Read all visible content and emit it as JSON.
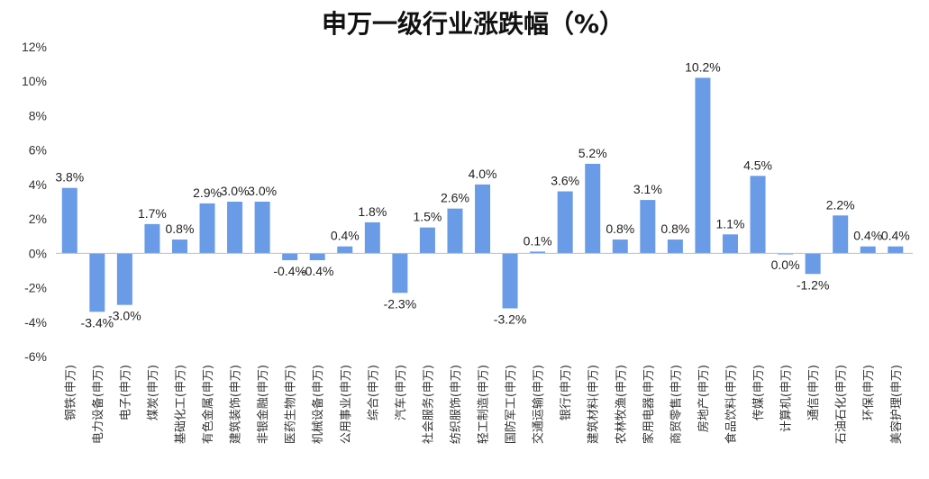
{
  "chart_data": {
    "type": "bar",
    "title": "申万一级行业涨跌幅（%）",
    "xlabel": "",
    "ylabel": "",
    "ylim": [
      -6,
      12
    ],
    "yticks": [
      "12%",
      "10%",
      "8%",
      "6%",
      "4%",
      "2%",
      "0%",
      "-2%",
      "-4%",
      "-6%"
    ],
    "ytick_values": [
      12,
      10,
      8,
      6,
      4,
      2,
      0,
      -2,
      -4,
      -6
    ],
    "grid": false,
    "legend": "none",
    "bar_color": "#6A9BE6",
    "categories": [
      "钢铁(申万)",
      "电力设备(申万)",
      "电子(申万)",
      "煤炭(申万)",
      "基础化工(申万)",
      "有色金属(申万)",
      "建筑装饰(申万)",
      "非银金融(申万)",
      "医药生物(申万)",
      "机械设备(申万)",
      "公用事业(申万)",
      "综合(申万)",
      "汽车(申万)",
      "社会服务(申万)",
      "纺织服饰(申万)",
      "轻工制造(申万)",
      "国防军工(申万)",
      "交通运输(申万)",
      "银行(申万)",
      "建筑材料(申万)",
      "农林牧渔(申万)",
      "家用电器(申万)",
      "商贸零售(申万)",
      "房地产(申万)",
      "食品饮料(申万)",
      "传媒(申万)",
      "计算机(申万)",
      "通信(申万)",
      "石油石化(申万)",
      "环保(申万)",
      "美容护理(申万)"
    ],
    "values": [
      3.8,
      -3.4,
      -3.0,
      1.7,
      0.8,
      2.9,
      3.0,
      3.0,
      -0.4,
      -0.4,
      0.4,
      1.8,
      -2.3,
      1.5,
      2.6,
      4.0,
      -3.2,
      0.1,
      3.6,
      5.2,
      0.8,
      3.1,
      0.8,
      10.2,
      1.1,
      4.5,
      -0.04,
      -1.2,
      2.2,
      0.4,
      0.4
    ],
    "labels": [
      "3.8%",
      "-3.4%",
      "-3.0%",
      "1.7%",
      "0.8%",
      "2.9%",
      "3.0%",
      "3.0%",
      "-0.4%",
      "-0.4%",
      "0.4%",
      "1.8%",
      "-2.3%",
      "1.5%",
      "2.6%",
      "4.0%",
      "-3.2%",
      "0.1%",
      "3.6%",
      "5.2%",
      "0.8%",
      "3.1%",
      "0.8%",
      "10.2%",
      "1.1%",
      "4.5%",
      "0.0%",
      "-1.2%",
      "2.2%",
      "0.4%",
      "0.4%"
    ]
  }
}
